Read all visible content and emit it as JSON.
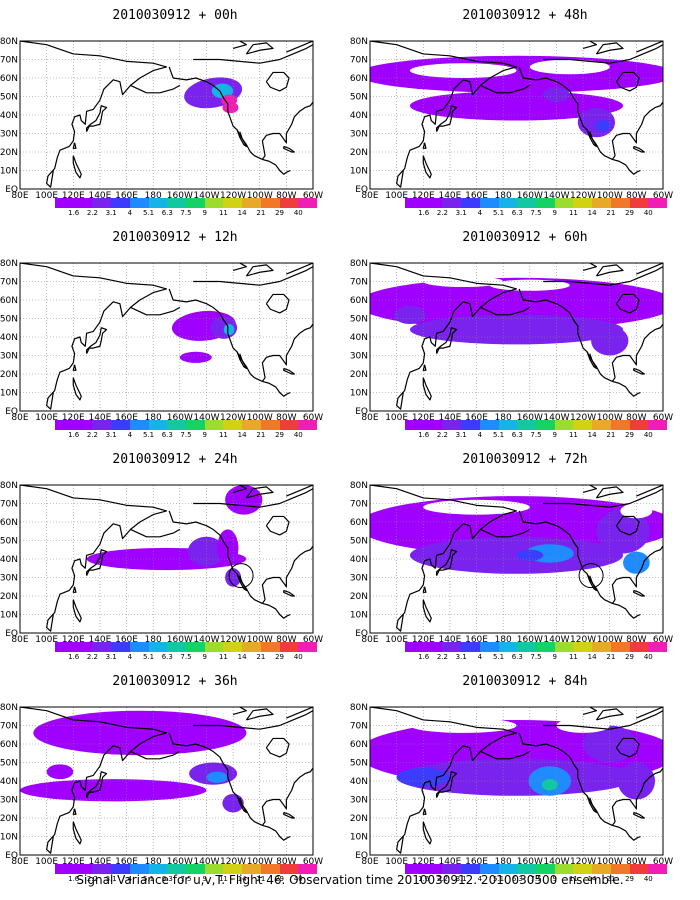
{
  "figure": {
    "caption": "Signal Variance for u,v,T. Flight 46. Observation time 2010030912. 2010030500 ensemble."
  },
  "map": {
    "lon_ticks": [
      "80E",
      "100E",
      "120E",
      "140E",
      "160E",
      "180",
      "160W",
      "140W",
      "120W",
      "100W",
      "80W",
      "60W"
    ],
    "lat_ticks": [
      "EQ",
      "10N",
      "20N",
      "30N",
      "40N",
      "50N",
      "60N",
      "70N",
      "80N"
    ],
    "lon_range_deg_east": [
      80,
      300
    ],
    "lat_range_deg": [
      0,
      80
    ],
    "grid": "dotted",
    "land_color": "#ffffff",
    "coast_color": "#000000"
  },
  "legend": {
    "levels": [
      "1.6",
      "2.2",
      "3.1",
      "4",
      "5.1",
      "6.3",
      "7.5",
      "9",
      "11",
      "14",
      "21",
      "29",
      "40"
    ],
    "colors": [
      "#a000ff",
      "#7a22ee",
      "#3c3cff",
      "#1e8cff",
      "#14b4e6",
      "#12c8a0",
      "#14d264",
      "#9bdc2c",
      "#d2d214",
      "#e6aa28",
      "#f07828",
      "#f03c3c",
      "#f01eb4"
    ]
  },
  "panels": [
    {
      "title": "2010030912 + 00h",
      "col": 0,
      "row": 0
    },
    {
      "title": "2010030912 + 12h",
      "col": 0,
      "row": 1
    },
    {
      "title": "2010030912 + 24h",
      "col": 0,
      "row": 2
    },
    {
      "title": "2010030912 + 36h",
      "col": 0,
      "row": 3
    },
    {
      "title": "2010030912 + 48h",
      "col": 1,
      "row": 0
    },
    {
      "title": "2010030912 + 60h",
      "col": 1,
      "row": 1
    },
    {
      "title": "2010030912 + 72h",
      "col": 1,
      "row": 2
    },
    {
      "title": "2010030912 + 84h",
      "col": 1,
      "row": 3
    }
  ]
}
